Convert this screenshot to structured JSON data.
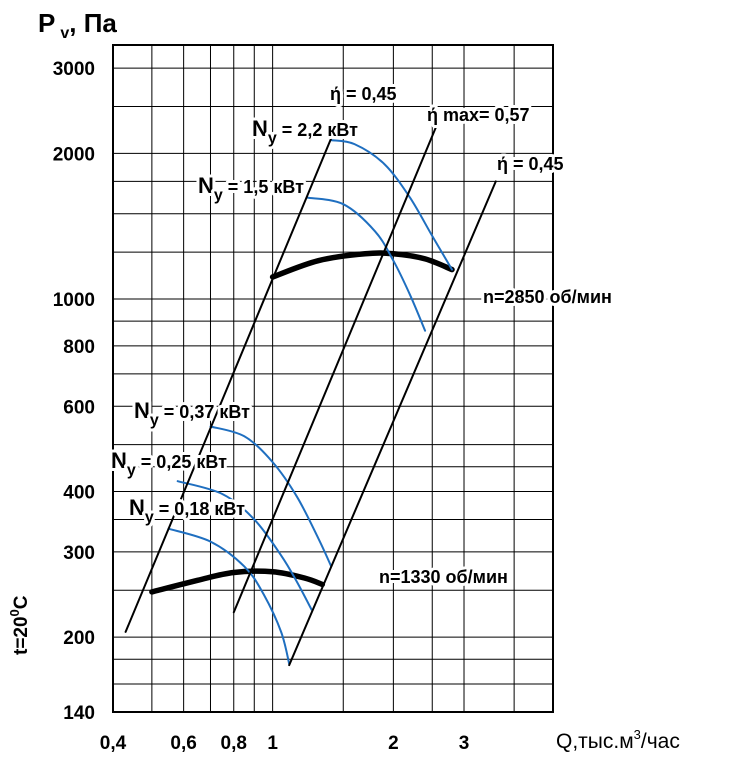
{
  "chart_data": {
    "type": "line",
    "ylabel": {
      "main": "P",
      "sub": "v",
      "rest": ", Па"
    },
    "xlabel": {
      "main": "Q,тыс.м",
      "sup": "3",
      "rest": "/час"
    },
    "side_label": {
      "pre": "t=20",
      "sup": "0",
      "post": "C"
    },
    "xlim": [
      0.4,
      5.0
    ],
    "ylim": [
      140,
      3350
    ],
    "x_ticks": [
      {
        "v": 0.4,
        "label": "0,4"
      },
      {
        "v": 0.6,
        "label": "0,6"
      },
      {
        "v": 0.8,
        "label": "0,8"
      },
      {
        "v": 1.0,
        "label": "1"
      },
      {
        "v": 2.0,
        "label": "2"
      },
      {
        "v": 3.0,
        "label": "3"
      }
    ],
    "x_grid": [
      0.5,
      0.6,
      0.7,
      0.8,
      0.9,
      1.0,
      1.5,
      2.0,
      2.5,
      3.0,
      4.0
    ],
    "y_ticks": [
      {
        "v": 140,
        "label": "140"
      },
      {
        "v": 200,
        "label": "200"
      },
      {
        "v": 300,
        "label": "300"
      },
      {
        "v": 400,
        "label": "400"
      },
      {
        "v": 600,
        "label": "600"
      },
      {
        "v": 800,
        "label": "800"
      },
      {
        "v": 1000,
        "label": "1000"
      },
      {
        "v": 2000,
        "label": "2000"
      },
      {
        "v": 3000,
        "label": "3000"
      }
    ],
    "y_grid": [
      160,
      180,
      200,
      250,
      300,
      350,
      400,
      450,
      500,
      600,
      700,
      800,
      900,
      1000,
      1250,
      1500,
      1750,
      2000,
      2500,
      3000
    ],
    "series": [
      {
        "name": "n=2850 об/мин",
        "style": "operating",
        "x": [
          1.0,
          1.3,
          1.7,
          2.0,
          2.4,
          2.8
        ],
        "y": [
          1110,
          1200,
          1240,
          1240,
          1210,
          1150
        ]
      },
      {
        "name": "n=1330 об/мин",
        "style": "operating",
        "x": [
          0.5,
          0.65,
          0.8,
          1.0,
          1.2,
          1.33
        ],
        "y": [
          248,
          262,
          272,
          273,
          265,
          257
        ]
      },
      {
        "name": "Nу = 2,2 кВт",
        "style": "power",
        "x": [
          1.4,
          1.6,
          1.9,
          2.2,
          2.5,
          2.8
        ],
        "y": [
          2130,
          2090,
          1900,
          1620,
          1350,
          1150
        ]
      },
      {
        "name": "Nу = 1,5 кВт",
        "style": "power",
        "x": [
          1.22,
          1.5,
          1.8,
          2.0,
          2.2,
          2.4
        ],
        "y": [
          1620,
          1570,
          1380,
          1200,
          1020,
          860
        ]
      },
      {
        "name": "Nу = 0,37 кВт",
        "style": "power",
        "x": [
          0.7,
          0.85,
          1.0,
          1.15,
          1.3,
          1.4
        ],
        "y": [
          545,
          520,
          460,
          390,
          320,
          280
        ]
      },
      {
        "name": "Nу = 0,25 кВт",
        "style": "power",
        "x": [
          0.58,
          0.75,
          0.9,
          1.05,
          1.15,
          1.25
        ],
        "y": [
          420,
          395,
          350,
          295,
          260,
          228
        ]
      },
      {
        "name": "Nу = 0,18 кВт",
        "style": "power",
        "x": [
          0.55,
          0.7,
          0.85,
          0.95,
          1.05,
          1.1
        ],
        "y": [
          335,
          315,
          280,
          245,
          205,
          176
        ]
      },
      {
        "name": "ή = 0,45",
        "style": "efficiency",
        "x": [
          0.43,
          1.4
        ],
        "y": [
          205,
          2150
        ]
      },
      {
        "name": "ή max= 0,57",
        "style": "efficiency",
        "x": [
          0.8,
          2.55
        ],
        "y": [
          225,
          2260
        ]
      },
      {
        "name": "ή = 0,45",
        "style": "efficiency",
        "x": [
          1.1,
          3.6
        ],
        "y": [
          175,
          1750
        ]
      }
    ],
    "annotations": [
      {
        "id": "eta-left",
        "text": "ή = 0,45"
      },
      {
        "id": "eta-max",
        "text": "ή max= 0,57"
      },
      {
        "id": "eta-right",
        "text": "ή = 0,45"
      },
      {
        "id": "n-2850",
        "text": "n=2850 об/мин"
      },
      {
        "id": "n-1330",
        "text": "n=1330 об/мин"
      },
      {
        "id": "ny-2-2",
        "main": "N",
        "sub": "y",
        "rest": " = 2,2 кВт"
      },
      {
        "id": "ny-1-5",
        "main": "N",
        "sub": "y",
        "rest": " = 1,5 кВт"
      },
      {
        "id": "ny-0-37",
        "main": "N",
        "sub": "y",
        "rest": " = 0,37 кВт"
      },
      {
        "id": "ny-0-25",
        "main": "N",
        "sub": "y",
        "rest": " = 0,25 кВт"
      },
      {
        "id": "ny-0-18",
        "main": "N",
        "sub": "y",
        "rest": " = 0,18 кВт"
      }
    ],
    "colors": {
      "operating": "#000000",
      "power": "#1f6fc0",
      "efficiency": "#000000",
      "grid": "#000000"
    }
  }
}
